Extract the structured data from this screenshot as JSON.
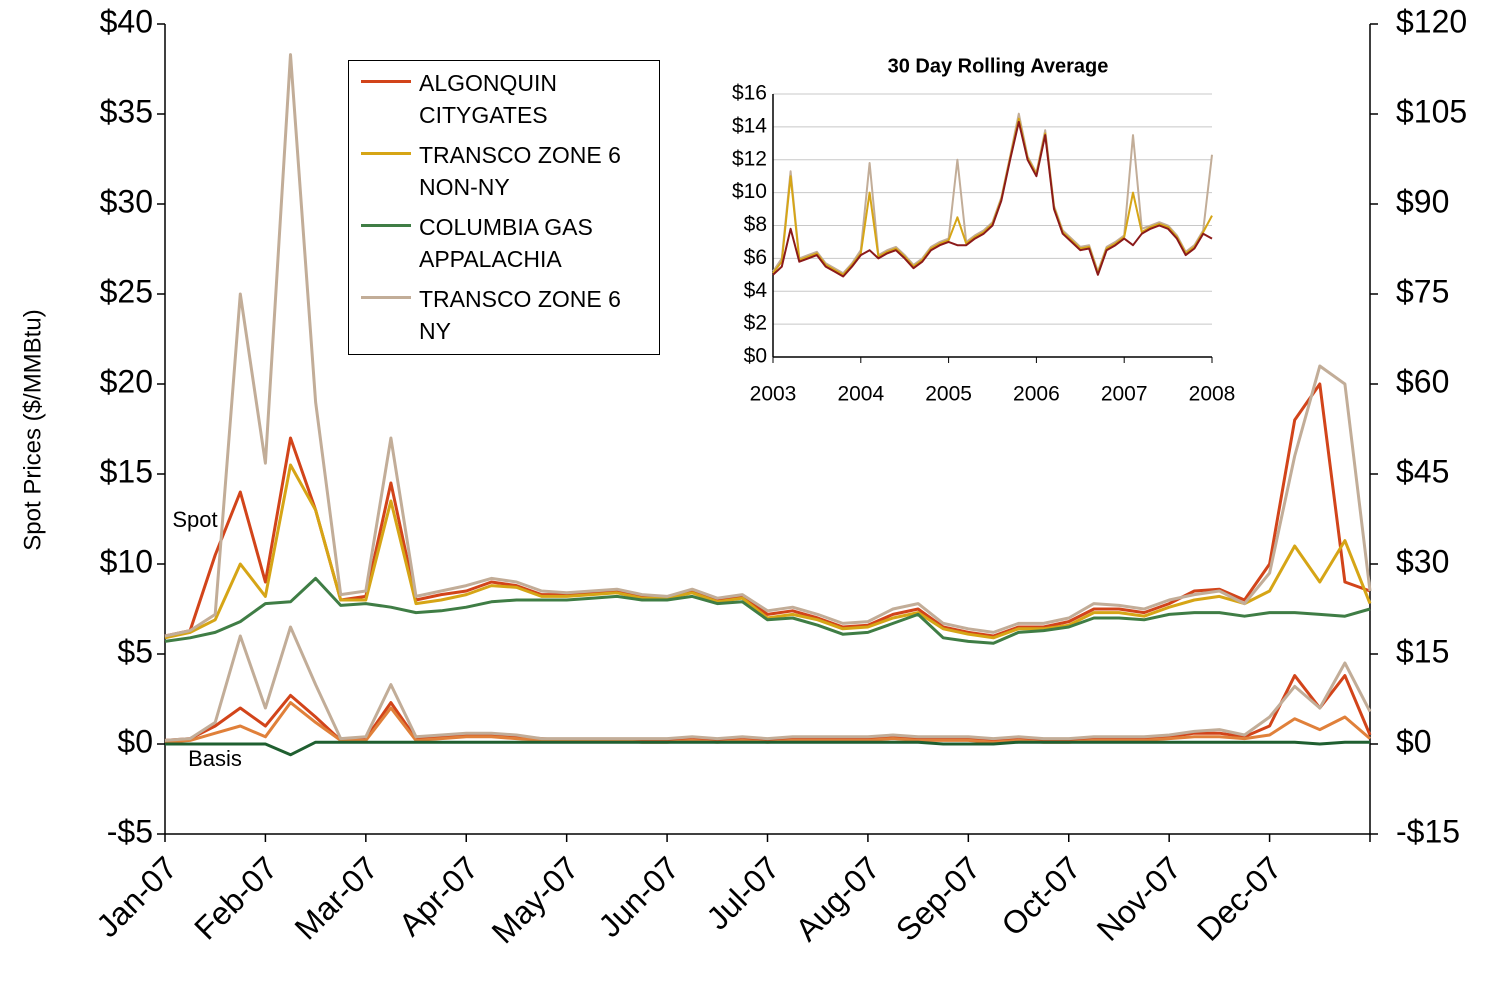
{
  "chart_data": [
    {
      "type": "line",
      "y_label": "Spot Prices ($/MMBtu)",
      "annotations": [
        "Spot",
        "Basis"
      ],
      "categories": [
        "Jan-07",
        null,
        null,
        null,
        "Feb-07",
        null,
        null,
        null,
        "Mar-07",
        null,
        null,
        null,
        "Apr-07",
        null,
        null,
        null,
        "May-07",
        null,
        null,
        null,
        "Jun-07",
        null,
        null,
        null,
        "Jul-07",
        null,
        null,
        null,
        "Aug-07",
        null,
        null,
        null,
        "Sep-07",
        null,
        null,
        null,
        "Oct-07",
        null,
        null,
        null,
        "Nov-07",
        null,
        null,
        null,
        "Dec-07",
        null,
        null,
        null,
        null
      ],
      "ylim": [
        -5,
        40
      ],
      "yticks": [
        {
          "value": -5,
          "label": "-$5"
        },
        {
          "value": 0,
          "label": "$0"
        },
        {
          "value": 5,
          "label": "$5"
        },
        {
          "value": 10,
          "label": "$10"
        },
        {
          "value": 15,
          "label": "$15"
        },
        {
          "value": 20,
          "label": "$20"
        },
        {
          "value": 25,
          "label": "$25"
        },
        {
          "value": 30,
          "label": "$30"
        },
        {
          "value": 35,
          "label": "$35"
        },
        {
          "value": 40,
          "label": "$40"
        }
      ],
      "y2lim": [
        -15,
        120
      ],
      "y2ticks": [
        {
          "value": -15,
          "label": "-$15"
        },
        {
          "value": 0,
          "label": "$0"
        },
        {
          "value": 15,
          "label": "$15"
        },
        {
          "value": 30,
          "label": "$30"
        },
        {
          "value": 45,
          "label": "$45"
        },
        {
          "value": 60,
          "label": "$60"
        },
        {
          "value": 75,
          "label": "$75"
        },
        {
          "value": 90,
          "label": "$90"
        },
        {
          "value": 105,
          "label": "$105"
        },
        {
          "value": 120,
          "label": "$120"
        }
      ],
      "grid": false,
      "series": [
        {
          "name": "ALGONQUIN CITYGATES",
          "color": "#d2441a",
          "values": [
            6.0,
            6.3,
            10.5,
            14.0,
            9.0,
            17.0,
            13.0,
            8.0,
            8.2,
            14.5,
            8.0,
            8.3,
            8.5,
            9.0,
            8.8,
            8.3,
            8.3,
            8.4,
            8.5,
            8.2,
            8.1,
            8.5,
            8.0,
            8.2,
            7.2,
            7.4,
            7.0,
            6.5,
            6.6,
            7.2,
            7.5,
            6.5,
            6.2,
            6.0,
            6.5,
            6.5,
            6.8,
            7.5,
            7.5,
            7.3,
            7.8,
            8.5,
            8.6,
            8.0,
            10.0,
            18.0,
            20.0,
            9.0,
            8.5
          ]
        },
        {
          "name": "TRANSCO ZONE 6 NON-NY",
          "color": "#d6a516",
          "values": [
            5.9,
            6.2,
            6.9,
            10.0,
            8.2,
            15.5,
            13.0,
            8.0,
            8.0,
            13.5,
            7.8,
            8.0,
            8.3,
            8.8,
            8.7,
            8.2,
            8.2,
            8.3,
            8.4,
            8.1,
            8.1,
            8.4,
            7.9,
            8.1,
            7.0,
            7.2,
            6.9,
            6.4,
            6.5,
            7.0,
            7.3,
            6.4,
            6.1,
            5.9,
            6.4,
            6.4,
            6.6,
            7.3,
            7.3,
            7.1,
            7.6,
            8.0,
            8.2,
            7.8,
            8.5,
            11.0,
            9.0,
            11.3,
            7.8
          ]
        },
        {
          "name": "COLUMBIA GAS APPALACHIA",
          "color": "#3f7d45",
          "values": [
            5.7,
            5.9,
            6.2,
            6.8,
            7.8,
            7.9,
            9.2,
            7.7,
            7.8,
            7.6,
            7.3,
            7.4,
            7.6,
            7.9,
            8.0,
            8.0,
            8.0,
            8.1,
            8.2,
            8.0,
            8.0,
            8.2,
            7.8,
            7.9,
            6.9,
            7.0,
            6.6,
            6.1,
            6.2,
            6.7,
            7.2,
            5.9,
            5.7,
            5.6,
            6.2,
            6.3,
            6.5,
            7.0,
            7.0,
            6.9,
            7.2,
            7.3,
            7.3,
            7.1,
            7.3,
            7.3,
            7.2,
            7.1,
            7.5
          ]
        },
        {
          "name": "TRANSCO ZONE 6 NY",
          "color": "#c2ad98",
          "values": [
            6.0,
            6.3,
            7.2,
            25.0,
            15.6,
            38.3,
            19.0,
            8.3,
            8.5,
            17.0,
            8.2,
            8.5,
            8.8,
            9.2,
            9.0,
            8.5,
            8.4,
            8.5,
            8.6,
            8.3,
            8.2,
            8.6,
            8.1,
            8.3,
            7.4,
            7.6,
            7.2,
            6.7,
            6.8,
            7.5,
            7.8,
            6.7,
            6.4,
            6.2,
            6.7,
            6.7,
            7.0,
            7.8,
            7.7,
            7.5,
            8.0,
            8.3,
            8.5,
            7.8,
            9.5,
            16.0,
            21.0,
            20.0,
            8.5
          ]
        },
        {
          "color": "#d2441a",
          "values": [
            0.2,
            0.3,
            1.0,
            2.0,
            1.0,
            2.7,
            1.5,
            0.2,
            0.3,
            2.3,
            0.3,
            0.4,
            0.5,
            0.5,
            0.4,
            0.3,
            0.2,
            0.2,
            0.2,
            0.2,
            0.2,
            0.3,
            0.2,
            0.3,
            0.2,
            0.3,
            0.3,
            0.3,
            0.3,
            0.4,
            0.3,
            0.3,
            0.3,
            0.2,
            0.3,
            0.2,
            0.2,
            0.3,
            0.3,
            0.3,
            0.4,
            0.6,
            0.6,
            0.4,
            1.0,
            3.8,
            2.0,
            3.8,
            0.5
          ]
        },
        {
          "color": "#e0803a",
          "values": [
            0.1,
            0.2,
            0.6,
            1.0,
            0.4,
            2.3,
            1.2,
            0.2,
            0.2,
            2.0,
            0.2,
            0.3,
            0.4,
            0.4,
            0.3,
            0.2,
            0.2,
            0.2,
            0.2,
            0.1,
            0.1,
            0.2,
            0.1,
            0.2,
            0.1,
            0.2,
            0.2,
            0.2,
            0.2,
            0.3,
            0.2,
            0.2,
            0.2,
            0.1,
            0.2,
            0.1,
            0.1,
            0.2,
            0.2,
            0.2,
            0.3,
            0.4,
            0.4,
            0.3,
            0.5,
            1.4,
            0.8,
            1.5,
            0.3
          ]
        },
        {
          "color": "#1f5f30",
          "values": [
            0,
            0,
            0,
            0,
            0,
            -0.6,
            0.1,
            0.1,
            0.1,
            0.1,
            0.1,
            0.1,
            0.1,
            0.1,
            0.1,
            0.1,
            0.1,
            0.1,
            0.1,
            0.1,
            0.1,
            0.1,
            0.1,
            0.1,
            0.1,
            0.1,
            0.1,
            0.1,
            0.1,
            0.1,
            0.1,
            0,
            0,
            0,
            0.1,
            0.1,
            0.1,
            0.1,
            0.1,
            0.1,
            0.1,
            0.1,
            0.1,
            0.1,
            0.1,
            0.1,
            0,
            0.1,
            0.1
          ]
        },
        {
          "color": "#c2ad98",
          "values": [
            0.2,
            0.3,
            1.2,
            6.0,
            2.0,
            6.5,
            3.3,
            0.3,
            0.4,
            3.3,
            0.4,
            0.5,
            0.6,
            0.6,
            0.5,
            0.3,
            0.3,
            0.3,
            0.3,
            0.3,
            0.3,
            0.4,
            0.3,
            0.4,
            0.3,
            0.4,
            0.4,
            0.4,
            0.4,
            0.5,
            0.4,
            0.4,
            0.4,
            0.3,
            0.4,
            0.3,
            0.3,
            0.4,
            0.4,
            0.4,
            0.5,
            0.7,
            0.8,
            0.5,
            1.5,
            3.2,
            2.0,
            4.5,
            1.8
          ]
        }
      ]
    },
    {
      "type": "line",
      "title": "30 Day Rolling Average",
      "x": [
        2003.0,
        2003.1,
        2003.2,
        2003.3,
        2003.4,
        2003.5,
        2003.6,
        2003.7,
        2003.8,
        2003.9,
        2004.0,
        2004.1,
        2004.2,
        2004.3,
        2004.4,
        2004.5,
        2004.6,
        2004.7,
        2004.8,
        2004.9,
        2005.0,
        2005.1,
        2005.2,
        2005.3,
        2005.4,
        2005.5,
        2005.6,
        2005.7,
        2005.8,
        2005.9,
        2006.0,
        2006.1,
        2006.2,
        2006.3,
        2006.4,
        2006.5,
        2006.6,
        2006.7,
        2006.8,
        2006.9,
        2007.0,
        2007.1,
        2007.2,
        2007.3,
        2007.4,
        2007.5,
        2007.6,
        2007.7,
        2007.8,
        2007.9,
        2008.0
      ],
      "xlim": [
        2003,
        2008
      ],
      "xticks": [
        2003,
        2004,
        2005,
        2006,
        2007,
        2008
      ],
      "ylim": [
        0,
        16
      ],
      "yticks": [
        {
          "value": 0,
          "label": "$0"
        },
        {
          "value": 2,
          "label": "$2"
        },
        {
          "value": 4,
          "label": "$4"
        },
        {
          "value": 6,
          "label": "$6"
        },
        {
          "value": 8,
          "label": "$8"
        },
        {
          "value": 10,
          "label": "$10"
        },
        {
          "value": 12,
          "label": "$12"
        },
        {
          "value": 14,
          "label": "$14"
        },
        {
          "value": 16,
          "label": "$16"
        }
      ],
      "grid": true,
      "series": [
        {
          "color": "#c2ad98",
          "values": [
            5.2,
            6.0,
            11.3,
            6.0,
            6.2,
            6.4,
            5.7,
            5.4,
            5.1,
            5.7,
            6.5,
            11.8,
            6.2,
            6.5,
            6.7,
            6.2,
            5.6,
            6.0,
            6.7,
            7.0,
            7.2,
            12.0,
            7.0,
            7.4,
            7.7,
            8.2,
            9.7,
            12.2,
            14.8,
            12.2,
            11.2,
            13.8,
            9.2,
            7.7,
            7.2,
            6.7,
            6.8,
            5.2,
            6.7,
            7.0,
            7.4,
            13.5,
            7.8,
            8.0,
            8.2,
            8.0,
            7.4,
            6.4,
            6.8,
            7.7,
            12.3
          ]
        },
        {
          "color": "#d6a516",
          "values": [
            5.1,
            5.8,
            11.0,
            5.9,
            6.1,
            6.3,
            5.6,
            5.3,
            5.0,
            5.6,
            6.3,
            10.0,
            6.1,
            6.4,
            6.6,
            6.1,
            5.5,
            5.9,
            6.6,
            6.9,
            7.1,
            8.5,
            6.9,
            7.3,
            7.6,
            8.1,
            9.6,
            12.1,
            14.5,
            12.1,
            11.1,
            13.6,
            9.1,
            7.6,
            7.1,
            6.6,
            6.7,
            5.1,
            6.6,
            6.9,
            7.3,
            10.0,
            7.6,
            7.9,
            8.1,
            7.9,
            7.3,
            6.3,
            6.7,
            7.6,
            8.6
          ]
        },
        {
          "color": "#8b1a1a",
          "values": [
            5.0,
            5.5,
            7.8,
            5.8,
            6.0,
            6.2,
            5.5,
            5.2,
            4.9,
            5.5,
            6.2,
            6.5,
            6.0,
            6.3,
            6.5,
            6.0,
            5.4,
            5.8,
            6.5,
            6.8,
            7.0,
            6.8,
            6.8,
            7.2,
            7.5,
            8.0,
            9.5,
            12.0,
            14.3,
            12.0,
            11.0,
            13.5,
            9.0,
            7.5,
            7.0,
            6.5,
            6.6,
            5.0,
            6.5,
            6.8,
            7.2,
            6.8,
            7.5,
            7.8,
            8.0,
            7.8,
            7.2,
            6.2,
            6.6,
            7.5,
            7.2
          ]
        }
      ]
    }
  ]
}
